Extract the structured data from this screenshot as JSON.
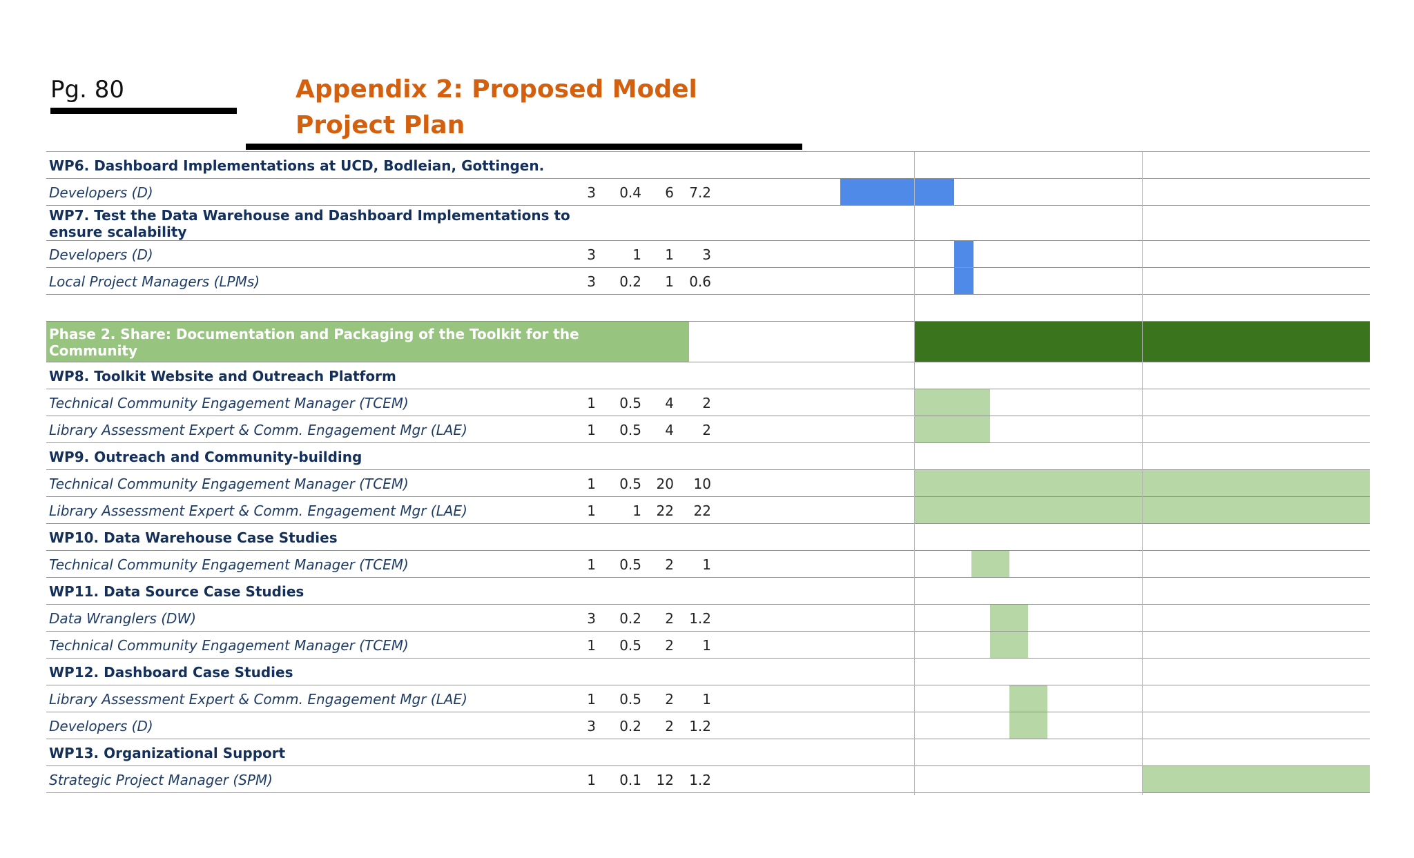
{
  "header": {
    "page_number": "Pg. 80",
    "title": "Appendix 2: Proposed Model Project Plan"
  },
  "rows": {
    "r0": {
      "label": "WP6. Dashboard Implementations at UCD, Bodleian, Gottingen."
    },
    "r1": {
      "label": "Developers (D)",
      "n": "3",
      "fte": "0.4",
      "months": "6",
      "pm": "7.2"
    },
    "r2": {
      "label_line1": "WP7. Test the Data Warehouse and Dashboard Implementations to",
      "label_line2": "ensure scalability"
    },
    "r3": {
      "label": "Developers (D)",
      "n": "3",
      "fte": "1",
      "months": "1",
      "pm": "3"
    },
    "r4": {
      "label": "Local Project Managers (LPMs)",
      "n": "3",
      "fte": "0.2",
      "months": "1",
      "pm": "0.6"
    },
    "r6": {
      "label_line1": "Phase 2. Share: Documentation and Packaging of the Toolkit for the",
      "label_line2": "Community"
    },
    "r7": {
      "label": "WP8. Toolkit Website and Outreach Platform"
    },
    "r8": {
      "label": "Technical Community Engagement Manager (TCEM)",
      "n": "1",
      "fte": "0.5",
      "months": "4",
      "pm": "2"
    },
    "r9": {
      "label": "Library Assessment Expert & Comm. Engagement Mgr (LAE)",
      "n": "1",
      "fte": "0.5",
      "months": "4",
      "pm": "2"
    },
    "r10": {
      "label": "WP9. Outreach and Community-building"
    },
    "r11": {
      "label": "Technical Community Engagement Manager (TCEM)",
      "n": "1",
      "fte": "0.5",
      "months": "20",
      "pm": "10"
    },
    "r12": {
      "label": "Library Assessment Expert & Comm. Engagement Mgr (LAE)",
      "n": "1",
      "fte": "1",
      "months": "22",
      "pm": "22"
    },
    "r13": {
      "label": "WP10. Data Warehouse Case Studies"
    },
    "r14": {
      "label": "Technical Community Engagement Manager (TCEM)",
      "n": "1",
      "fte": "0.5",
      "months": "2",
      "pm": "1"
    },
    "r15": {
      "label": "WP11. Data Source Case Studies"
    },
    "r16": {
      "label": "Data Wranglers (DW)",
      "n": "3",
      "fte": "0.2",
      "months": "2",
      "pm": "1.2"
    },
    "r17": {
      "label": "Technical Community Engagement Manager (TCEM)",
      "n": "1",
      "fte": "0.5",
      "months": "2",
      "pm": "1"
    },
    "r18": {
      "label": "WP12. Dashboard Case Studies"
    },
    "r19": {
      "label": "Library Assessment Expert & Comm. Engagement Mgr (LAE)",
      "n": "1",
      "fte": "0.5",
      "months": "2",
      "pm": "1"
    },
    "r20": {
      "label": "Developers (D)",
      "n": "3",
      "fte": "0.2",
      "months": "2",
      "pm": "1.2"
    },
    "r21": {
      "label": "WP13. Organizational Support"
    },
    "r22": {
      "label": "Strategic Project Manager (SPM)",
      "n": "1",
      "fte": "0.1",
      "months": "12",
      "pm": "1.2"
    }
  },
  "colors": {
    "title": "#d4600e",
    "phase1_bar": "#4f8ae8",
    "phase2_header": "#97c47f",
    "phase2_timeline": "#3a741d",
    "phase2_bar": "#b8d7a6"
  }
}
